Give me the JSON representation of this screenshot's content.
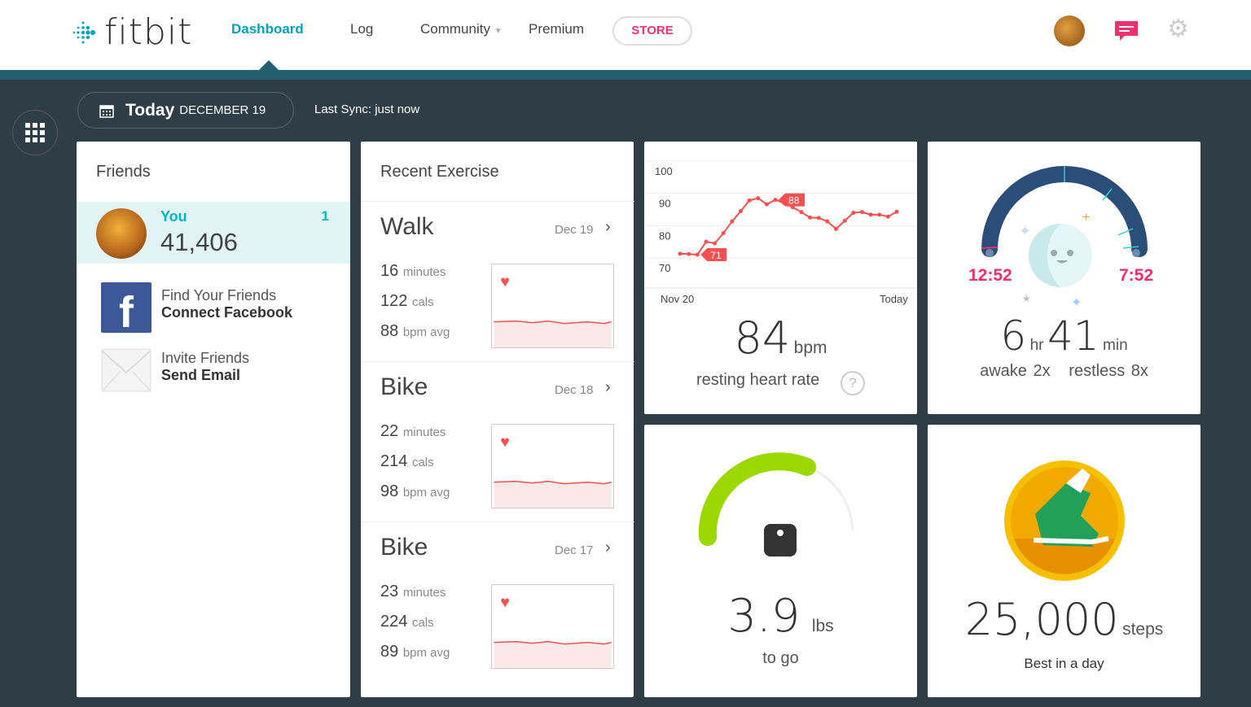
{
  "header": {
    "brand": "fitbit",
    "nav": [
      {
        "label": "Dashboard",
        "active": true
      },
      {
        "label": "Log"
      },
      {
        "label": "Community",
        "has_dropdown": true
      },
      {
        "label": "Premium"
      }
    ],
    "store_label": "STORE",
    "icons": {
      "messages": "message-icon",
      "settings": "gear-icon"
    }
  },
  "toolbar": {
    "today": "Today",
    "date": "DECEMBER 19",
    "last_sync": "Last Sync: just now"
  },
  "friends": {
    "title": "Friends",
    "you": {
      "name": "You",
      "rank": "1",
      "steps": "41,406"
    },
    "actions": [
      {
        "line1": "Find Your Friends",
        "line2": "Connect Facebook",
        "icon": "facebook-icon"
      },
      {
        "line1": "Invite Friends",
        "line2": "Send Email",
        "icon": "envelope-icon"
      }
    ]
  },
  "exercise": {
    "title": "Recent Exercise",
    "items": [
      {
        "name": "Walk",
        "date": "Dec 19",
        "minutes": "16",
        "minutes_unit": "minutes",
        "cals": "122",
        "cals_unit": "cals",
        "bpm": "88",
        "bpm_unit": "bpm avg"
      },
      {
        "name": "Bike",
        "date": "Dec 18",
        "minutes": "22",
        "minutes_unit": "minutes",
        "cals": "214",
        "cals_unit": "cals",
        "bpm": "98",
        "bpm_unit": "bpm avg"
      },
      {
        "name": "Bike",
        "date": "Dec 17",
        "minutes": "23",
        "minutes_unit": "minutes",
        "cals": "224",
        "cals_unit": "cals",
        "bpm": "89",
        "bpm_unit": "bpm avg"
      }
    ]
  },
  "heart_rate": {
    "y_ticks": [
      "100",
      "90",
      "80",
      "70"
    ],
    "ylim": [
      70,
      100
    ],
    "x_start": "Nov 20",
    "x_end": "Today",
    "values": [
      71.3,
      71.2,
      71,
      75,
      74.5,
      77.7,
      81.3,
      84.5,
      87.8,
      88.5,
      86.6,
      88,
      87,
      85.7,
      84.2,
      82.5,
      82.4,
      81.3,
      79,
      81.5,
      84,
      84.2,
      83.4,
      83.4,
      82.8,
      84.3
    ],
    "min_label": "71",
    "max_label": "88",
    "value": "84",
    "unit": "bpm",
    "caption": "resting heart rate",
    "help": "?",
    "color": "#f5504f"
  },
  "sleep": {
    "start": "12:52",
    "end": "7:52",
    "hours": "6",
    "hours_unit": "hr",
    "minutes": "41",
    "minutes_unit": "min",
    "awake": "awake 2x",
    "restless": "restless 8x",
    "accent": "#f0306d",
    "arc_color": "#2a4e78"
  },
  "weight": {
    "value": "3.9",
    "unit": "lbs",
    "caption": "to go",
    "progress": 0.6,
    "color": "#9ad800"
  },
  "badge": {
    "value": "25,000",
    "unit": "steps",
    "caption": "Best in a day",
    "color": "#f6c000"
  }
}
